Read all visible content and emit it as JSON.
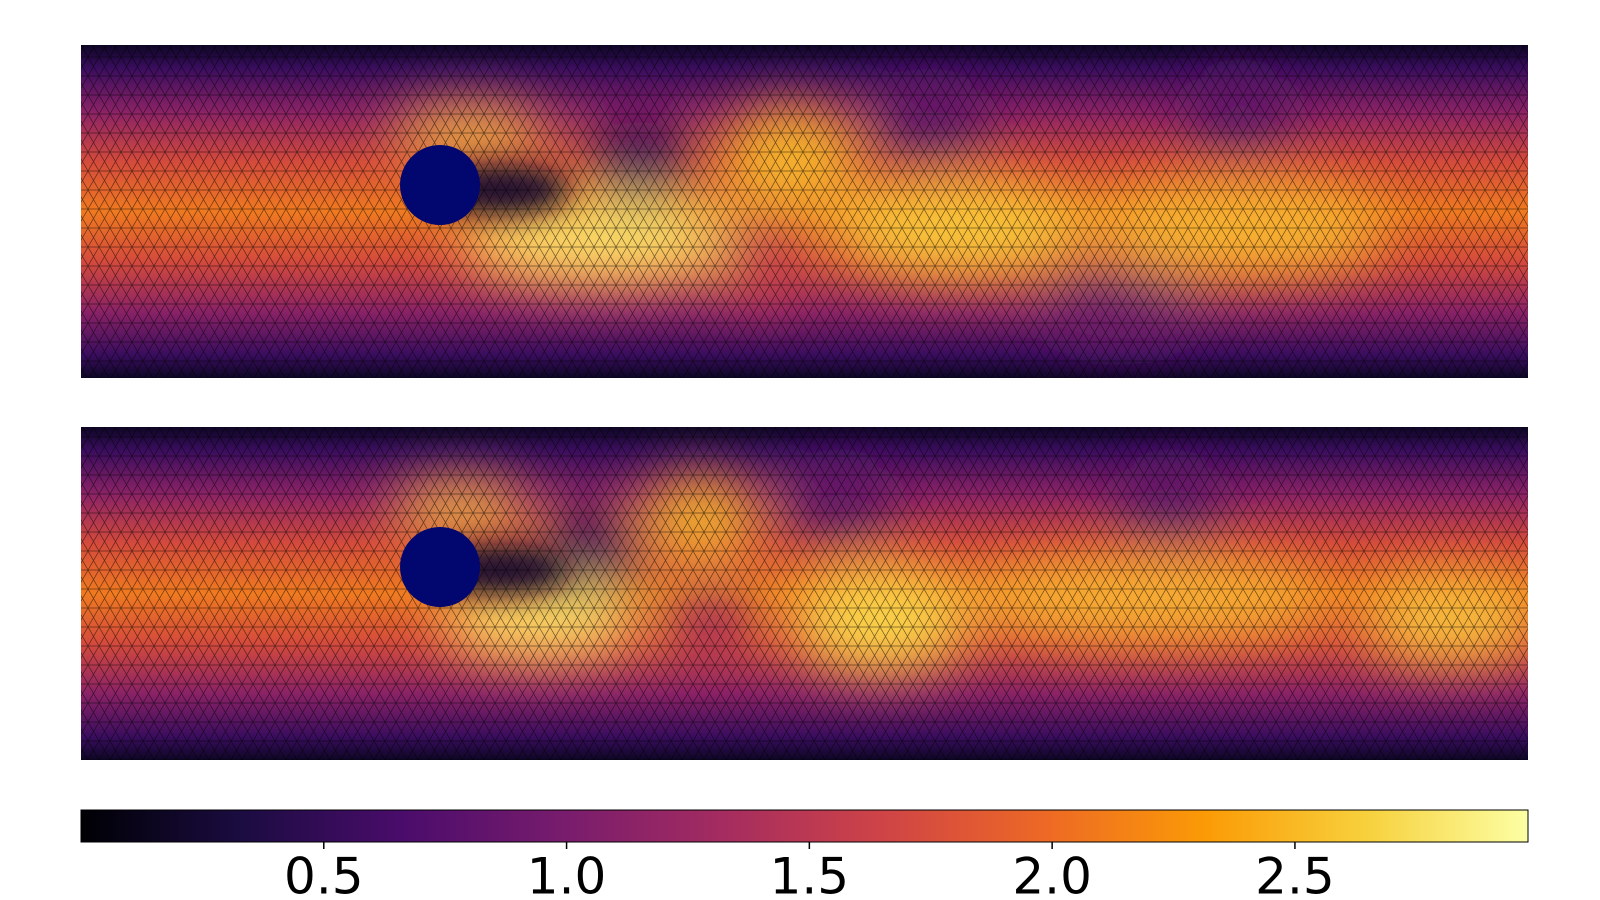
{
  "chart_data": {
    "type": "colorbar",
    "colormap": [
      "#000004",
      "#1b0c41",
      "#4a0c6b",
      "#781c6d",
      "#a52c60",
      "#cf4446",
      "#ed6925",
      "#fb9b06",
      "#f7d13d",
      "#fcffa4"
    ],
    "clim": [
      0,
      2.98
    ],
    "cticks": [
      0.5,
      {
        "value": 1,
        "label": "1.0"
      },
      1.5,
      {
        "value": 2,
        "label": "2.0"
      },
      2.5
    ]
  }
}
